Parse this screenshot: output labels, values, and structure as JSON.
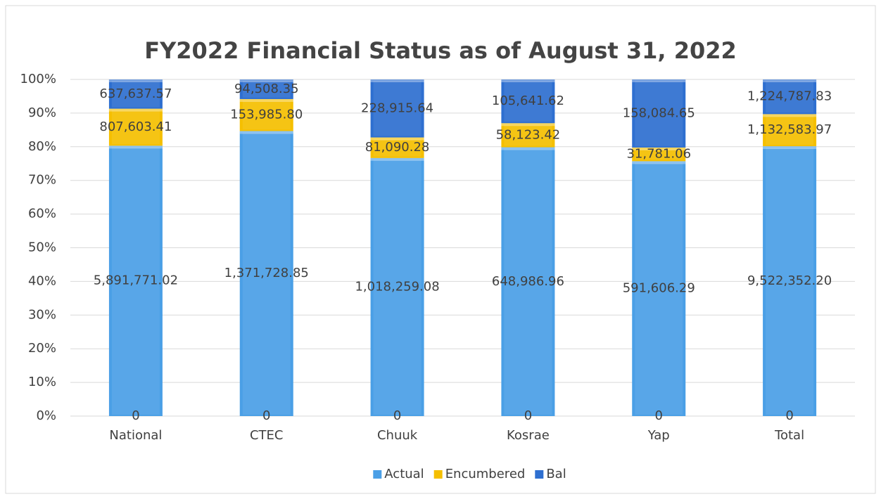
{
  "chart_data": {
    "type": "bar",
    "stacking": "percent",
    "title": "FY2022 Financial Status as of  August 31, 2022",
    "categories": [
      "National",
      "CTEC",
      "Chuuk",
      "Kosrae",
      "Yap",
      "Total"
    ],
    "series": [
      {
        "values": [
          0,
          0,
          0,
          0,
          0,
          0
        ]
      },
      {
        "name": "Actual",
        "color": "#4a9fe6",
        "values": [
          5891771.02,
          1371728.85,
          1018259.08,
          648986.96,
          591606.29,
          9522352.2
        ],
        "value_labels": [
          "5,891,771.02",
          "1,371,728.85",
          "1,018,259.08",
          "648,986.96",
          "591,606.29",
          "9,522,352.20"
        ]
      },
      {
        "name": "Encumbered",
        "color": "#f5bf00",
        "values": [
          807603.41,
          153985.8,
          81090.28,
          58123.42,
          31781.06,
          1132583.97
        ],
        "value_labels": [
          "807,603.41",
          "153,985.80",
          "81,090.28",
          "58,123.42",
          "31,781.06",
          "1,132,583.97"
        ]
      },
      {
        "name": "Bal",
        "color": "#2e6fd0",
        "values": [
          637637.57,
          94508.35,
          228915.64,
          105641.62,
          158084.65,
          1224787.83
        ],
        "value_labels": [
          "637,637.57",
          "94,508.35",
          "228,915.64",
          "105,641.62",
          "158,084.65",
          "1,224,787.83"
        ]
      }
    ],
    "ylim": [
      0,
      100
    ],
    "yticks": [
      {
        "value": 0,
        "label": "0%"
      },
      {
        "value": 10,
        "label": "10%"
      },
      {
        "value": 20,
        "label": "20%"
      },
      {
        "value": 30,
        "label": "30%"
      },
      {
        "value": 40,
        "label": "40%"
      },
      {
        "value": 50,
        "label": "50%"
      },
      {
        "value": 60,
        "label": "60%"
      },
      {
        "value": 70,
        "label": "70%"
      },
      {
        "value": 80,
        "label": "80%"
      },
      {
        "value": 90,
        "label": "90%"
      },
      {
        "value": 100,
        "label": "100%"
      }
    ],
    "grid": true,
    "legend": "bottom"
  }
}
